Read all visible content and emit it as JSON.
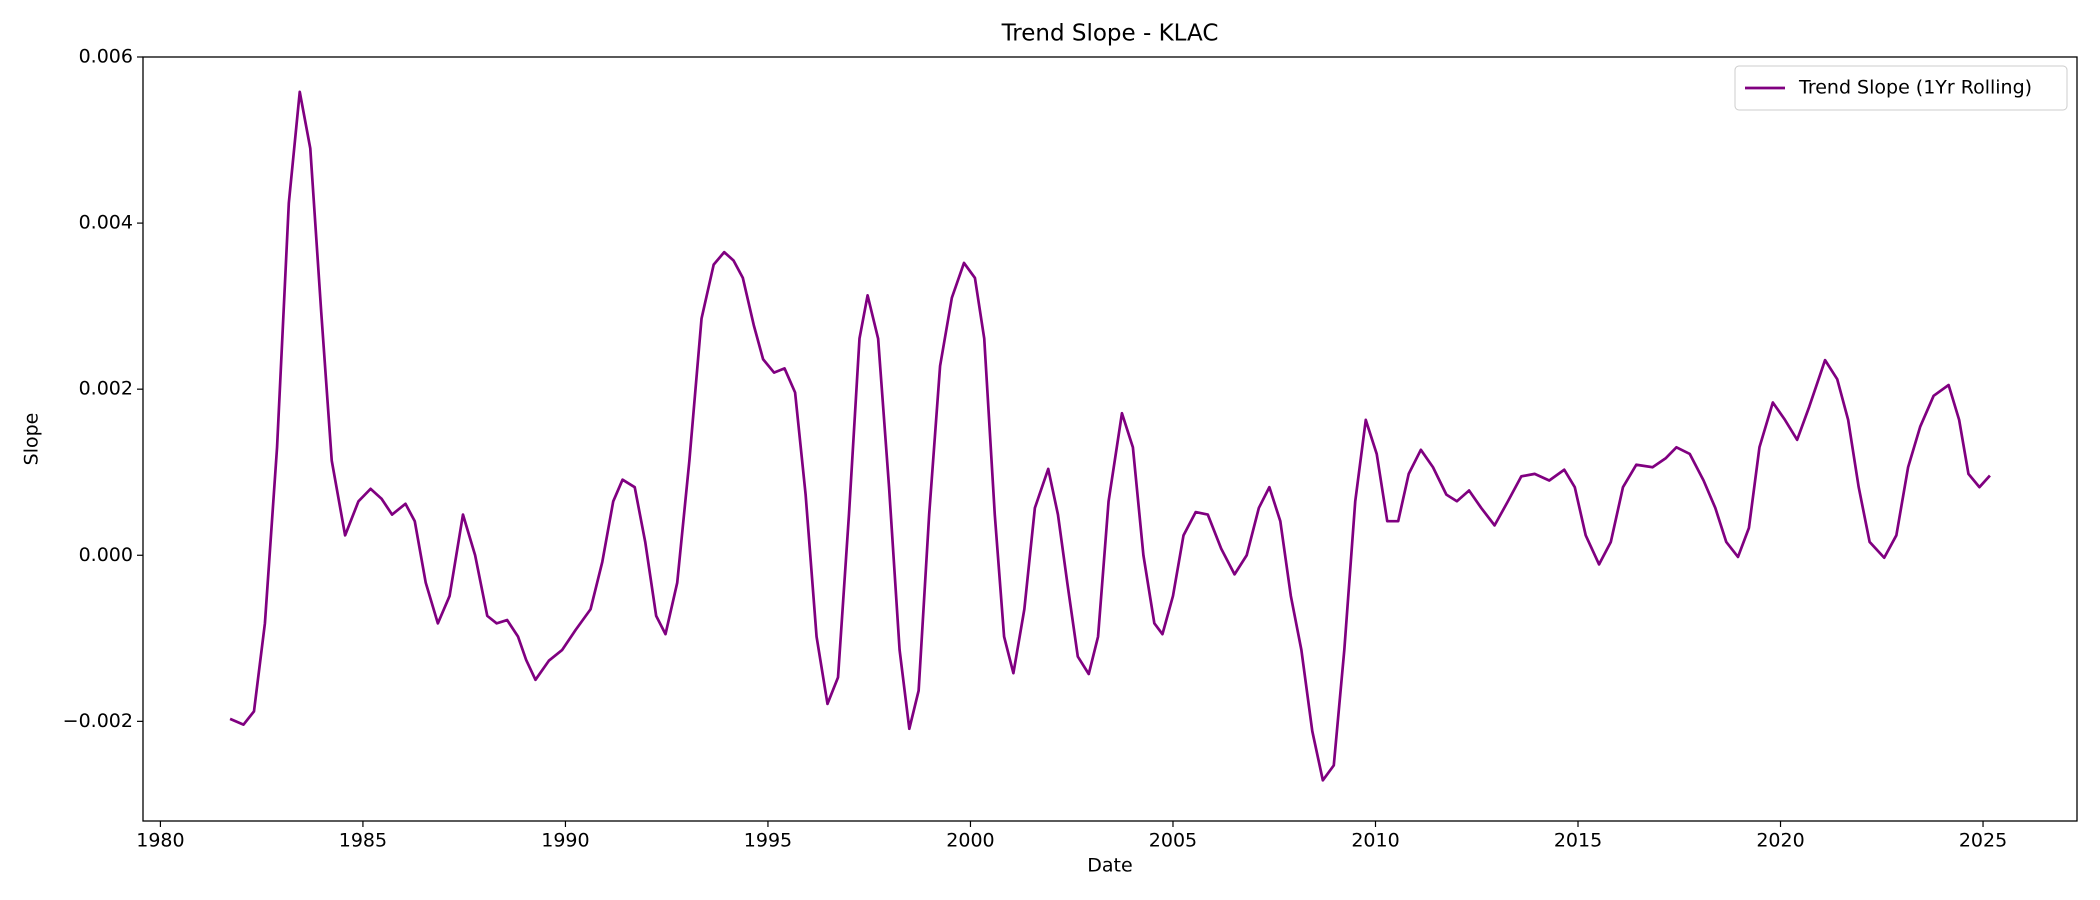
{
  "chart_data": {
    "type": "line",
    "title": "Trend Slope - KLAC",
    "x_label": "Date",
    "y_label": "Slope",
    "x": [
      1981.72,
      1982.05,
      1982.31,
      1982.58,
      1982.88,
      1983.17,
      1983.44,
      1983.7,
      1983.97,
      1984.23,
      1984.56,
      1984.89,
      1985.19,
      1985.46,
      1985.72,
      1986.05,
      1986.28,
      1986.55,
      1986.85,
      1987.14,
      1987.47,
      1987.77,
      1988.07,
      1988.3,
      1988.56,
      1988.83,
      1989.03,
      1989.26,
      1989.59,
      1989.92,
      1990.25,
      1990.62,
      1990.91,
      1991.18,
      1991.41,
      1991.71,
      1991.97,
      1992.24,
      1992.47,
      1992.76,
      1993.06,
      1993.36,
      1993.66,
      1993.92,
      1994.15,
      1994.38,
      1994.65,
      1994.88,
      1995.15,
      1995.41,
      1995.67,
      1995.93,
      1996.2,
      1996.47,
      1996.73,
      1997.0,
      1997.26,
      1997.46,
      1997.72,
      1997.99,
      1998.25,
      1998.49,
      1998.72,
      1998.98,
      1999.25,
      1999.54,
      1999.84,
      2000.11,
      2000.34,
      2000.6,
      2000.83,
      2001.06,
      2001.33,
      2001.59,
      2001.92,
      2002.16,
      2002.39,
      2002.65,
      2002.92,
      2003.15,
      2003.41,
      2003.74,
      2004.01,
      2004.27,
      2004.54,
      2004.74,
      2005.0,
      2005.26,
      2005.56,
      2005.86,
      2006.19,
      2006.52,
      2006.82,
      2007.12,
      2007.38,
      2007.65,
      2007.91,
      2008.17,
      2008.44,
      2008.7,
      2008.97,
      2009.23,
      2009.5,
      2009.76,
      2010.03,
      2010.29,
      2010.56,
      2010.82,
      2011.12,
      2011.42,
      2011.75,
      2012.01,
      2012.31,
      2012.61,
      2012.94,
      2013.27,
      2013.6,
      2013.93,
      2014.29,
      2014.66,
      2014.92,
      2015.19,
      2015.52,
      2015.81,
      2016.11,
      2016.44,
      2016.84,
      2017.17,
      2017.43,
      2017.76,
      2018.1,
      2018.39,
      2018.66,
      2018.95,
      2019.22,
      2019.48,
      2019.81,
      2020.11,
      2020.41,
      2020.71,
      2021.1,
      2021.4,
      2021.67,
      2021.93,
      2022.2,
      2022.56,
      2022.86,
      2023.15,
      2023.45,
      2023.78,
      2024.15,
      2024.41,
      2024.64,
      2024.91,
      2025.17
    ],
    "series": [
      {
        "name": "Trend Slope (1Yr Rolling)",
        "color": "#800080",
        "values": [
          -0.00197,
          -0.00204,
          -0.00188,
          -0.00082,
          0.0013,
          0.00424,
          0.00558,
          0.0049,
          0.00293,
          0.00114,
          0.00024,
          0.00065,
          0.0008,
          0.00068,
          0.00049,
          0.00062,
          0.00041,
          -0.00033,
          -0.00082,
          -0.00049,
          0.00049,
          0,
          -0.00073,
          -0.00082,
          -0.00078,
          -0.00098,
          -0.00126,
          -0.0015,
          -0.00127,
          -0.00114,
          -0.0009,
          -0.00065,
          -8e-05,
          0.00065,
          0.00091,
          0.00082,
          0.00016,
          -0.00073,
          -0.00095,
          -0.00033,
          0.00114,
          0.00285,
          0.0035,
          0.00365,
          0.00355,
          0.00334,
          0.00277,
          0.00236,
          0.0022,
          0.00225,
          0.00196,
          0.00073,
          -0.00098,
          -0.00179,
          -0.00147,
          0.00049,
          0.00261,
          0.00313,
          0.00261,
          0.00082,
          -0.00114,
          -0.00209,
          -0.00163,
          0.00049,
          0.00228,
          0.0031,
          0.00352,
          0.00334,
          0.00261,
          0.00049,
          -0.00098,
          -0.00142,
          -0.00065,
          0.00057,
          0.00104,
          0.00049,
          -0.00033,
          -0.00122,
          -0.00143,
          -0.00098,
          0.00065,
          0.00171,
          0.0013,
          0,
          -0.00082,
          -0.00095,
          -0.00049,
          0.00024,
          0.00052,
          0.00049,
          8e-05,
          -0.00023,
          0,
          0.00057,
          0.00082,
          0.00041,
          -0.00049,
          -0.00114,
          -0.00212,
          -0.00271,
          -0.00253,
          -0.00114,
          0.00065,
          0.00163,
          0.00122,
          0.00041,
          0.00041,
          0.00098,
          0.00127,
          0.00106,
          0.00073,
          0.00065,
          0.00078,
          0.00057,
          0.00036,
          0.00065,
          0.00095,
          0.00098,
          0.0009,
          0.00103,
          0.00082,
          0.00024,
          -0.00011,
          0.00016,
          0.00082,
          0.00109,
          0.00106,
          0.00117,
          0.0013,
          0.00122,
          0.0009,
          0.00057,
          0.00016,
          -2e-05,
          0.00033,
          0.0013,
          0.00184,
          0.00163,
          0.00139,
          0.00179,
          0.00235,
          0.00212,
          0.00163,
          0.00082,
          0.00016,
          -3e-05,
          0.00024,
          0.00106,
          0.00155,
          0.00192,
          0.00205,
          0.00163,
          0.00098,
          0.00082,
          0.00096
        ]
      }
    ],
    "xlim": [
      1979.57,
      2027.32
    ],
    "xticks": [
      1980,
      1985,
      1990,
      1995,
      2000,
      2005,
      2010,
      2015,
      2020,
      2025
    ],
    "ylim": [
      -0.0032,
      0.006
    ],
    "yticks": [
      {
        "value": -0.002,
        "label": "−0.002"
      },
      {
        "value": 0,
        "label": "0.000"
      },
      0.002,
      0.004,
      0.006
    ],
    "grid": false,
    "legend": "upper right"
  }
}
